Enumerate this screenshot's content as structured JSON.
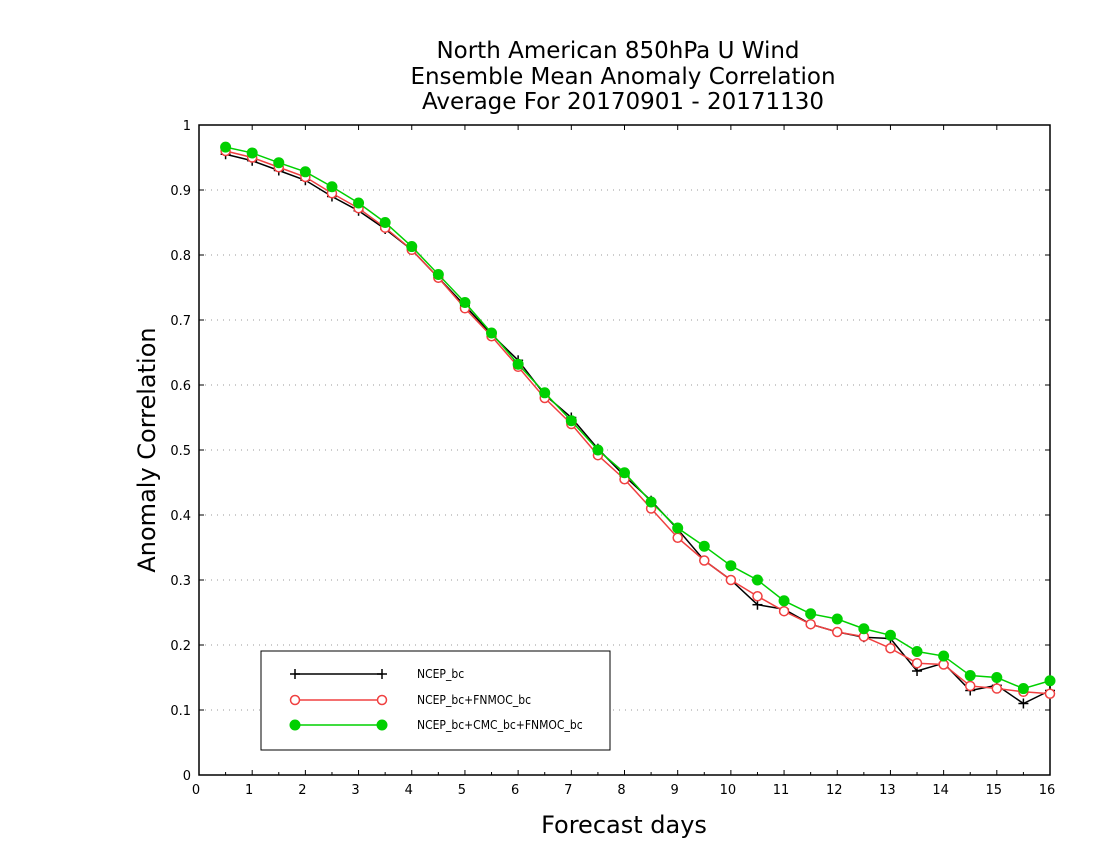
{
  "chart_data": {
    "type": "line",
    "title_lines": [
      "North American 850hPa U Wind",
      "Ensemble Mean Anomaly Correlation",
      "Average For 20170901 - 20171130"
    ],
    "xlabel": "Forecast days",
    "ylabel": "Anomaly Correlation",
    "xlim": [
      0,
      16
    ],
    "ylim": [
      0,
      1
    ],
    "x_ticks": [
      0,
      1,
      2,
      3,
      4,
      5,
      6,
      7,
      8,
      9,
      10,
      11,
      12,
      13,
      14,
      15,
      16
    ],
    "y_ticks": [
      0,
      0.1,
      0.2,
      0.3,
      0.4,
      0.5,
      0.6,
      0.7,
      0.8,
      0.9,
      1
    ],
    "grid": "horizontal dotted",
    "legend_placement": "lower-left",
    "x": [
      0.5,
      1,
      1.5,
      2,
      2.5,
      3,
      3.5,
      4,
      4.5,
      5,
      5.5,
      6,
      6.5,
      7,
      7.5,
      8,
      8.5,
      9,
      9.5,
      10,
      10.5,
      11,
      11.5,
      12,
      12.5,
      13,
      13.5,
      14,
      14.5,
      15,
      15.5,
      16
    ],
    "series": [
      {
        "name": "NCEP_bc",
        "color": "#000000",
        "marker": "plus",
        "values": [
          0.955,
          0.945,
          0.93,
          0.915,
          0.89,
          0.868,
          0.84,
          0.808,
          0.765,
          0.722,
          0.678,
          0.638,
          0.585,
          0.55,
          0.502,
          0.46,
          0.422,
          0.378,
          0.33,
          0.3,
          0.262,
          0.255,
          0.232,
          0.22,
          0.212,
          0.21,
          0.16,
          0.172,
          0.13,
          0.138,
          0.11,
          0.13
        ]
      },
      {
        "name": "NCEP_bc+FNMOC_bc",
        "color": "#f04040",
        "marker": "open-circle",
        "values": [
          0.96,
          0.95,
          0.935,
          0.92,
          0.895,
          0.872,
          0.842,
          0.808,
          0.765,
          0.718,
          0.675,
          0.628,
          0.58,
          0.54,
          0.492,
          0.455,
          0.41,
          0.365,
          0.33,
          0.3,
          0.275,
          0.252,
          0.232,
          0.22,
          0.213,
          0.195,
          0.172,
          0.17,
          0.137,
          0.133,
          0.128,
          0.125
        ]
      },
      {
        "name": "NCEP_bc+CMC_bc+FNMOC_bc",
        "color": "#00d000",
        "marker": "filled-circle",
        "values": [
          0.966,
          0.957,
          0.942,
          0.928,
          0.905,
          0.88,
          0.85,
          0.813,
          0.77,
          0.727,
          0.68,
          0.632,
          0.588,
          0.545,
          0.5,
          0.465,
          0.42,
          0.38,
          0.352,
          0.322,
          0.3,
          0.268,
          0.248,
          0.24,
          0.225,
          0.215,
          0.19,
          0.183,
          0.153,
          0.15,
          0.133,
          0.145
        ]
      }
    ]
  }
}
